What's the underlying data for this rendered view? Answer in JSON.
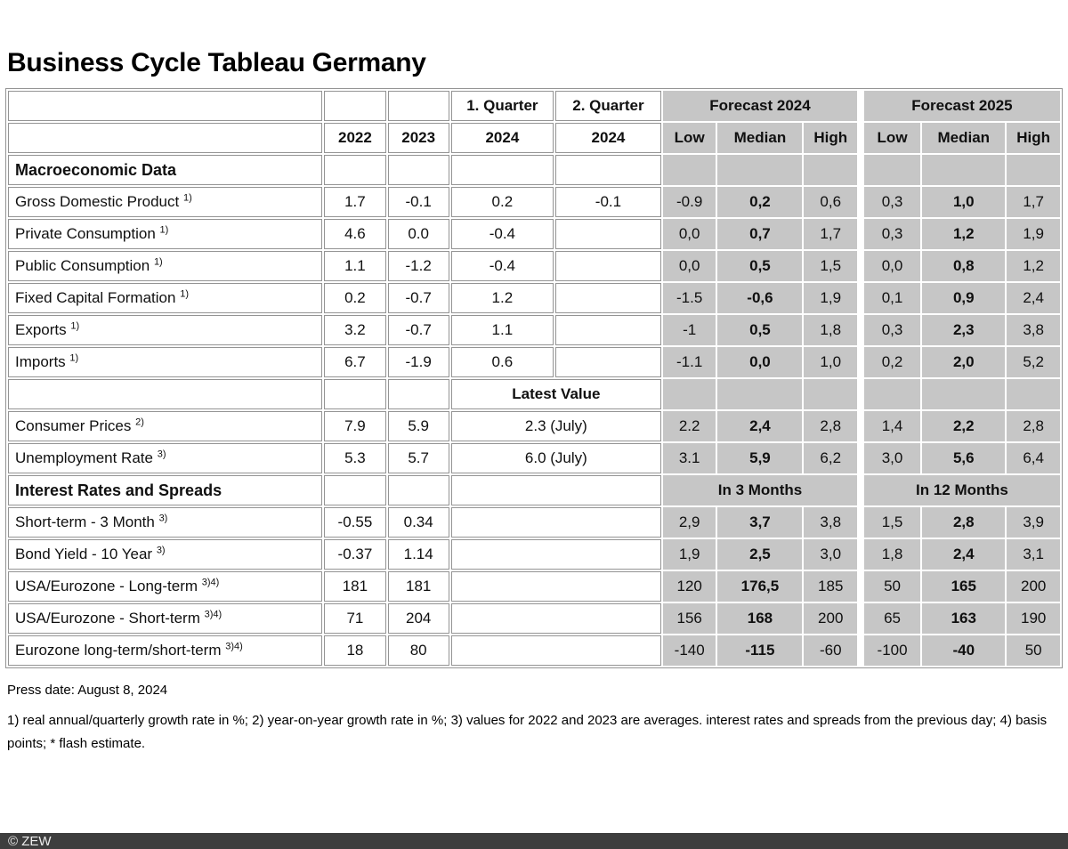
{
  "title": "Business Cycle Tableau Germany",
  "colors": {
    "cell_gray": "#c6c6c6",
    "cell_border": "#949494",
    "footer_bar_bg": "#3e3e3e",
    "footer_bar_text": "#ededed"
  },
  "table": {
    "header": {
      "col_2022": "2022",
      "col_2023": "2023",
      "q1_label": "1. Quarter",
      "q1_year": "2024",
      "q2_label": "2. Quarter",
      "q2_year": "2024",
      "forecast_2024": "Forecast 2024",
      "forecast_2025": "Forecast 2025",
      "low": "Low",
      "median": "Median",
      "high": "High"
    },
    "rows": [
      {
        "type": "section",
        "label": "Macroeconomic Data"
      },
      {
        "type": "data",
        "label": "Gross Domestic Product",
        "sup": "1)",
        "y2022": "1.7",
        "y2023": "-0.1",
        "q1": "0.2",
        "q2": "-0.1",
        "f": [
          "-0.9",
          "0,2",
          "0,6",
          "0,3",
          "1,0",
          "1,7"
        ]
      },
      {
        "type": "data",
        "label": "Private Consumption",
        "sup": "1)",
        "y2022": "4.6",
        "y2023": "0.0",
        "q1": "-0.4",
        "q2": "",
        "f": [
          "0,0",
          "0,7",
          "1,7",
          "0,3",
          "1,2",
          "1,9"
        ]
      },
      {
        "type": "data",
        "label": "Public Consumption",
        "sup": "1)",
        "y2022": "1.1",
        "y2023": "-1.2",
        "q1": "-0.4",
        "q2": "",
        "f": [
          "0,0",
          "0,5",
          "1,5",
          "0,0",
          "0,8",
          "1,2"
        ]
      },
      {
        "type": "data",
        "label": "Fixed Capital Formation",
        "sup": "1)",
        "y2022": "0.2",
        "y2023": "-0.7",
        "q1": "1.2",
        "q2": "",
        "f": [
          "-1.5",
          "-0,6",
          "1,9",
          "0,1",
          "0,9",
          "2,4"
        ]
      },
      {
        "type": "data",
        "label": "Exports",
        "sup": "1)",
        "y2022": "3.2",
        "y2023": "-0.7",
        "q1": "1.1",
        "q2": "",
        "f": [
          "-1",
          "0,5",
          "1,8",
          "0,3",
          "2,3",
          "3,8"
        ]
      },
      {
        "type": "data",
        "label": "Imports",
        "sup": "1)",
        "y2022": "6.7",
        "y2023": "-1.9",
        "q1": "0.6",
        "q2": "",
        "f": [
          "-1.1",
          "0,0",
          "1,0",
          "0,2",
          "2,0",
          "5,2"
        ]
      },
      {
        "type": "latest",
        "latest_label": "Latest Value"
      },
      {
        "type": "data-merged",
        "label": "Consumer Prices",
        "sup": "2)",
        "y2022": "7.9",
        "y2023": "5.9",
        "latest": "2.3 (July)",
        "f": [
          "2.2",
          "2,4",
          "2,8",
          "1,4",
          "2,2",
          "2,8"
        ]
      },
      {
        "type": "data-merged",
        "label": "Unemployment Rate",
        "sup": "3)",
        "y2022": "5.3",
        "y2023": "5.7",
        "latest": "6.0 (July)",
        "f": [
          "3.1",
          "5,9",
          "6,2",
          "3,0",
          "5,6",
          "6,4"
        ]
      },
      {
        "type": "section-months",
        "label": "Interest Rates and Spreads",
        "m3": "In 3 Months",
        "m12": "In 12 Months"
      },
      {
        "type": "data-wide",
        "label": "Short-term - 3 Month",
        "sup": "3)",
        "y2022": "-0.55",
        "y2023": "0.34",
        "f": [
          "2,9",
          "3,7",
          "3,8",
          "1,5",
          "2,8",
          "3,9"
        ]
      },
      {
        "type": "data-wide",
        "label": "Bond Yield - 10 Year",
        "sup": "3)",
        "y2022": "-0.37",
        "y2023": "1.14",
        "f": [
          "1,9",
          "2,5",
          "3,0",
          "1,8",
          "2,4",
          "3,1"
        ]
      },
      {
        "type": "data-wide",
        "label": "USA/Eurozone - Long-term",
        "sup": "3)4)",
        "y2022": "181",
        "y2023": "181",
        "f": [
          "120",
          "176,5",
          "185",
          "50",
          "165",
          "200"
        ]
      },
      {
        "type": "data-wide",
        "label": "USA/Eurozone - Short-term",
        "sup": "3)4)",
        "y2022": "71",
        "y2023": "204",
        "f": [
          "156",
          "168",
          "200",
          "65",
          "163",
          "190"
        ]
      },
      {
        "type": "data-wide",
        "label": "Eurozone long-term/short-term",
        "sup": "3)4)",
        "y2022": "18",
        "y2023": "80",
        "f": [
          "-140",
          "-115",
          "-60",
          "-100",
          "-40",
          "50"
        ]
      }
    ]
  },
  "press_date": "Press date: August 8, 2024",
  "footnotes": "1) real annual/quarterly growth rate in %; 2) year-on-year growth rate in %; 3) values for 2022 and 2023 are averages. interest rates and spreads from the previous day; 4) basis points; * flash estimate.",
  "footer": {
    "copyright": "© ZEW"
  }
}
